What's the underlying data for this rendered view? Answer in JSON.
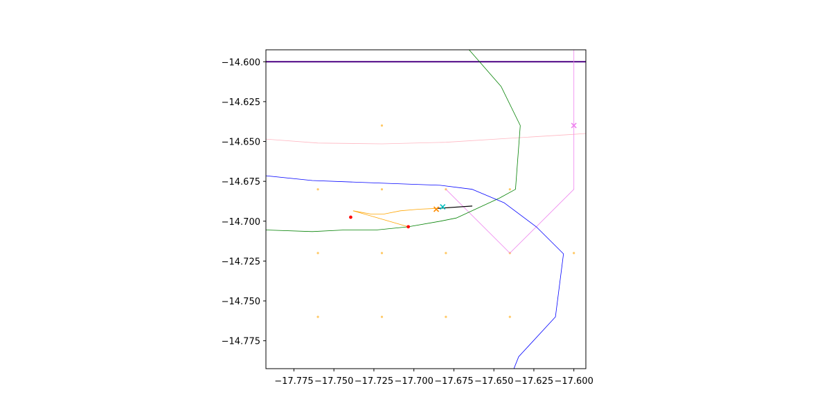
{
  "chart_data": {
    "type": "line",
    "title": "",
    "xlabel": "",
    "ylabel": "",
    "xlim": [
      -17.7925,
      -17.5925
    ],
    "ylim": [
      -14.7925,
      -14.5925
    ],
    "grid": false,
    "legend": "none",
    "x_ticks": [
      -17.775,
      -17.75,
      -17.725,
      -17.7,
      -17.675,
      -17.65,
      -17.625,
      -17.6
    ],
    "x_tick_labels": [
      "−17.775",
      "−17.750",
      "−17.725",
      "−17.700",
      "−17.675",
      "−17.650",
      "−17.625",
      "−17.600"
    ],
    "y_ticks": [
      -14.6,
      -14.625,
      -14.65,
      -14.675,
      -14.7,
      -14.725,
      -14.75,
      -14.775
    ],
    "y_tick_labels": [
      "−14.600",
      "−14.625",
      "−14.650",
      "−14.675",
      "−14.700",
      "−14.725",
      "−14.750",
      "−14.775"
    ],
    "lines": [
      {
        "color": "#4b0082",
        "width": 2,
        "points": [
          [
            -17.7925,
            -14.6
          ],
          [
            -17.5925,
            -14.6
          ]
        ]
      },
      {
        "color": "#ffb6c1",
        "width": 0.8,
        "points": [
          [
            -17.7925,
            -14.6485
          ],
          [
            -17.76,
            -14.651
          ],
          [
            -17.72,
            -14.6515
          ],
          [
            -17.68,
            -14.6505
          ],
          [
            -17.64,
            -14.648
          ],
          [
            -17.6,
            -14.6455
          ],
          [
            -17.5925,
            -14.645
          ]
        ]
      },
      {
        "color": "#ee82ee",
        "width": 0.8,
        "points": [
          [
            -17.6,
            -14.5925
          ],
          [
            -17.6,
            -14.68
          ],
          [
            -17.64,
            -14.72
          ],
          [
            -17.68,
            -14.68
          ]
        ]
      },
      {
        "color": "#008000",
        "width": 0.8,
        "points": [
          [
            -17.6655,
            -14.5925
          ],
          [
            -17.6455,
            -14.6155
          ],
          [
            -17.6335,
            -14.64
          ],
          [
            -17.6365,
            -14.68
          ],
          [
            -17.6465,
            -14.6855
          ],
          [
            -17.6735,
            -14.698
          ],
          [
            -17.6835,
            -14.7
          ],
          [
            -17.7035,
            -14.7035
          ],
          [
            -17.7235,
            -14.7055
          ],
          [
            -17.7435,
            -14.7055
          ],
          [
            -17.7635,
            -14.7065
          ],
          [
            -17.7925,
            -14.7055
          ]
        ]
      },
      {
        "color": "#0000ff",
        "width": 0.8,
        "points": [
          [
            -17.7925,
            -14.6715
          ],
          [
            -17.7635,
            -14.6745
          ],
          [
            -17.7235,
            -14.676
          ],
          [
            -17.6835,
            -14.6775
          ],
          [
            -17.6635,
            -14.68
          ],
          [
            -17.6435,
            -14.6885
          ],
          [
            -17.6235,
            -14.7035
          ],
          [
            -17.6065,
            -14.7205
          ],
          [
            -17.6115,
            -14.76
          ],
          [
            -17.6345,
            -14.785
          ],
          [
            -17.6375,
            -14.7925
          ]
        ]
      },
      {
        "color": "#ffa500",
        "width": 0.8,
        "points": [
          [
            -17.738,
            -14.6935
          ],
          [
            -17.727,
            -14.6955
          ],
          [
            -17.7185,
            -14.6955
          ],
          [
            -17.7085,
            -14.6935
          ],
          [
            -17.697,
            -14.6925
          ],
          [
            -17.686,
            -14.692
          ],
          [
            -17.6775,
            -14.6915
          ]
        ]
      },
      {
        "color": "#ffa500",
        "width": 0.8,
        "points": [
          [
            -17.738,
            -14.6935
          ],
          [
            -17.7035,
            -14.7035
          ]
        ]
      },
      {
        "color": "#000000",
        "width": 1.2,
        "points": [
          [
            -17.6855,
            -14.692
          ],
          [
            -17.6635,
            -14.6905
          ]
        ]
      }
    ],
    "grid_dots": {
      "color": "#ffa500",
      "points": [
        [
          -17.76,
          -14.68
        ],
        [
          -17.72,
          -14.68
        ],
        [
          -17.68,
          -14.68
        ],
        [
          -17.64,
          -14.68
        ],
        [
          -17.72,
          -14.64
        ],
        [
          -17.76,
          -14.72
        ],
        [
          -17.72,
          -14.72
        ],
        [
          -17.68,
          -14.72
        ],
        [
          -17.64,
          -14.72
        ],
        [
          -17.6,
          -14.72
        ],
        [
          -17.76,
          -14.76
        ],
        [
          -17.72,
          -14.76
        ],
        [
          -17.68,
          -14.76
        ],
        [
          -17.64,
          -14.76
        ]
      ]
    },
    "points": [
      {
        "x": -17.7395,
        "y": -14.6975,
        "color": "#ff0000"
      },
      {
        "x": -17.7035,
        "y": -14.7035,
        "color": "#ff0000"
      }
    ],
    "x_markers": [
      {
        "x": -17.686,
        "y": -14.6925,
        "color": "#ff8c00"
      },
      {
        "x": -17.682,
        "y": -14.691,
        "color": "#00bfbf"
      },
      {
        "x": -17.6,
        "y": -14.64,
        "color": "#ee82ee"
      }
    ]
  }
}
